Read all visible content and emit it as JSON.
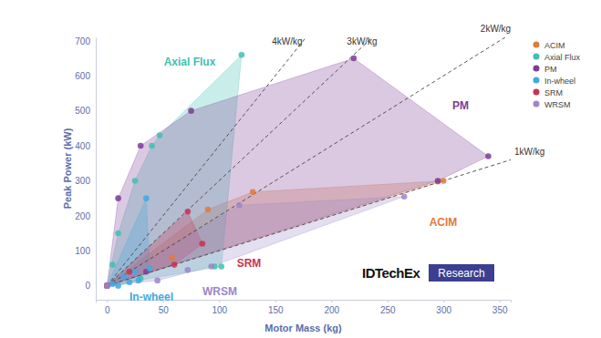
{
  "chart_data": {
    "type": "scatter",
    "x_label": "Motor Mass (kg)",
    "y_label": "Peak Power (kW)",
    "xlim": [
      -10,
      360
    ],
    "ylim": [
      -40,
      710
    ],
    "xticks": [
      0,
      50,
      100,
      150,
      200,
      250,
      300,
      350
    ],
    "yticks": [
      0,
      100,
      200,
      300,
      400,
      500,
      600,
      700
    ],
    "grid": false,
    "legend": "right",
    "marker": "circle",
    "series": [
      {
        "name": "ACIM",
        "color": "#e07b39",
        "x": [
          0,
          58,
          90,
          130,
          295,
          300
        ],
        "values": [
          0,
          80,
          218,
          268,
          298,
          300
        ]
      },
      {
        "name": "Axial Flux",
        "color": "#3ec1b1",
        "x": [
          0,
          5,
          10,
          25,
          40,
          47,
          120,
          102,
          96,
          30
        ],
        "values": [
          0,
          60,
          150,
          300,
          400,
          430,
          660,
          55,
          55,
          20
        ]
      },
      {
        "name": "PM",
        "color": "#7d3c98",
        "x": [
          0,
          10,
          30,
          75,
          220,
          340,
          295,
          35
        ],
        "values": [
          0,
          250,
          400,
          500,
          650,
          370,
          300,
          40
        ]
      },
      {
        "name": "In-wheel",
        "color": "#3fa9e0",
        "x": [
          0,
          5,
          10,
          15,
          20,
          25,
          35,
          38,
          28
        ],
        "values": [
          0,
          5,
          0,
          25,
          10,
          40,
          250,
          50,
          15
        ]
      },
      {
        "name": "SRM",
        "color": "#c8334f",
        "x": [
          0,
          20,
          60,
          72,
          85
        ],
        "values": [
          0,
          40,
          60,
          212,
          120
        ]
      },
      {
        "name": "WRSM",
        "color": "#9b87c9",
        "x": [
          0,
          45,
          72,
          93,
          118,
          265
        ],
        "values": [
          0,
          15,
          45,
          55,
          230,
          255
        ]
      }
    ],
    "reference_lines": [
      {
        "slope": 4,
        "label": "4kW/kg"
      },
      {
        "slope": 3,
        "label": "3kW/kg"
      },
      {
        "slope": 2,
        "label": "2kW/kg"
      },
      {
        "slope": 1,
        "label": "1kW/kg"
      }
    ],
    "annotations": [
      "IDTechEx",
      "Research"
    ]
  }
}
